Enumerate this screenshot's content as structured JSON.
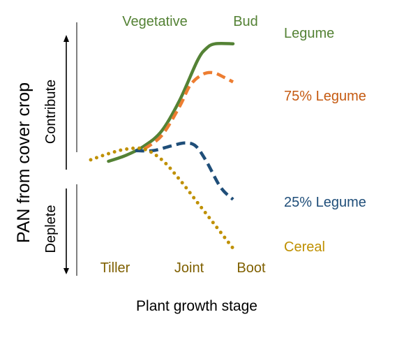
{
  "chart_data": {
    "type": "line",
    "xlabel": "Plant growth stage",
    "ylabel": "PAN from cover crop",
    "x_ticks_bottom": [
      "Tiller",
      "Joint",
      "Boot"
    ],
    "x_ticks_top": [
      "Vegetative",
      "Bud"
    ],
    "y_regions": [
      "Contribute",
      "Deplete"
    ],
    "xlim": [
      0,
      10
    ],
    "ylim": [
      -6,
      8
    ],
    "series": [
      {
        "name": "Legume",
        "color": "#548235",
        "style": "solid",
        "points": [
          [
            1,
            -0.1
          ],
          [
            2,
            0.3
          ],
          [
            3,
            0.9
          ],
          [
            4,
            1.9
          ],
          [
            5,
            3.9
          ],
          [
            6,
            6.5
          ],
          [
            6.5,
            7.3
          ],
          [
            7,
            7.6
          ],
          [
            8,
            7.6
          ]
        ]
      },
      {
        "name": "75% Legume",
        "color": "#ed7d31",
        "style": "dashed",
        "points": [
          [
            3,
            0.7
          ],
          [
            4,
            1.6
          ],
          [
            5,
            3.5
          ],
          [
            5.6,
            4.9
          ],
          [
            6.3,
            5.6
          ],
          [
            6.9,
            5.7
          ],
          [
            7.5,
            5.4
          ],
          [
            8,
            5.1
          ]
        ]
      },
      {
        "name": "25% Legume",
        "color": "#1f4e79",
        "style": "dashed",
        "points": [
          [
            2.5,
            0.6
          ],
          [
            3.5,
            0.6
          ],
          [
            4.5,
            0.9
          ],
          [
            5.3,
            1.1
          ],
          [
            5.9,
            0.9
          ],
          [
            6.5,
            -0.1
          ],
          [
            7.3,
            -1.8
          ],
          [
            8,
            -2.6
          ]
        ]
      },
      {
        "name": "Cereal",
        "color": "#bf9000",
        "style": "dotted",
        "points": [
          [
            0,
            0
          ],
          [
            1,
            0.4
          ],
          [
            2,
            0.7
          ],
          [
            3,
            0.7
          ],
          [
            4,
            0
          ],
          [
            5,
            -1.3
          ],
          [
            6,
            -2.8
          ],
          [
            7,
            -4.3
          ],
          [
            8,
            -5.8
          ]
        ]
      }
    ]
  }
}
